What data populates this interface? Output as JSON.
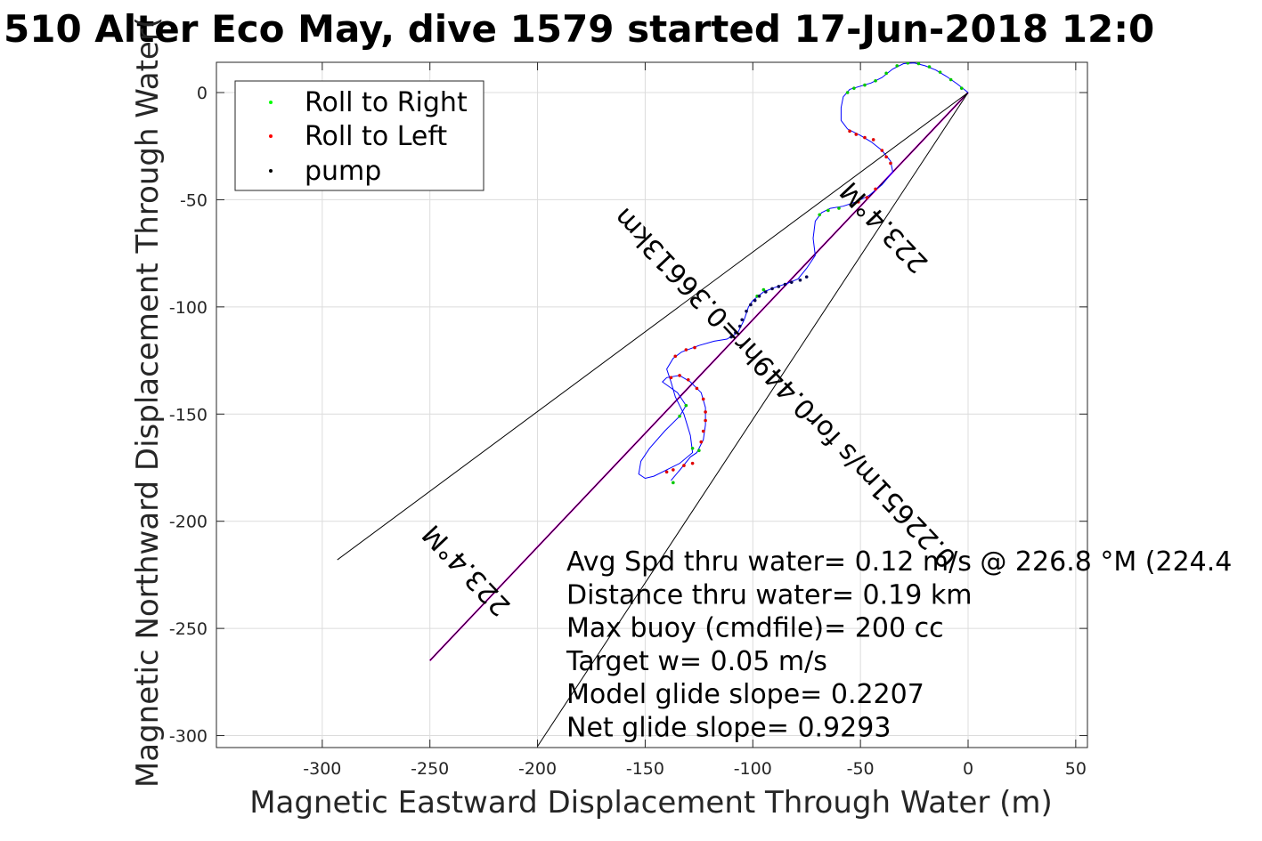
{
  "chart_data": {
    "type": "scatter",
    "title": "510 Alter Eco May, dive 1579 started 17-Jun-2018 12:0",
    "xlabel": "Magnetic Eastward Displacement Through Water (m)",
    "ylabel": "Magnetic Northward Displacement Through Water(",
    "xlim": [
      -350,
      55
    ],
    "ylim": [
      -305,
      14
    ],
    "xticks": [
      -300,
      -250,
      -200,
      -150,
      -100,
      -50,
      0,
      50
    ],
    "yticks": [
      0,
      -50,
      -100,
      -150,
      -200,
      -250,
      -300
    ],
    "grid": true,
    "legend": {
      "placement": "top-left",
      "entries": [
        {
          "label": "Roll to Right",
          "color": "#00ff00"
        },
        {
          "label": "Roll to Left",
          "color": "#ff0000"
        },
        {
          "label": "pump",
          "color": "#000000"
        }
      ]
    },
    "track": {
      "color": "#0000ff",
      "points": [
        [
          0,
          0
        ],
        [
          -5,
          4
        ],
        [
          -10,
          7.5
        ],
        [
          -15,
          10.5
        ],
        [
          -20,
          12.5
        ],
        [
          -25,
          13.8
        ],
        [
          -30,
          13.5
        ],
        [
          -35,
          11
        ],
        [
          -40,
          7
        ],
        [
          -45,
          4.5
        ],
        [
          -50,
          3
        ],
        [
          -55,
          1.5
        ],
        [
          -58,
          -2
        ],
        [
          -59,
          -7
        ],
        [
          -59,
          -13
        ],
        [
          -56,
          -17
        ],
        [
          -50,
          -20
        ],
        [
          -45,
          -23
        ],
        [
          -40,
          -27
        ],
        [
          -36,
          -32
        ],
        [
          -35,
          -37
        ],
        [
          -40,
          -43
        ],
        [
          -46,
          -48
        ],
        [
          -52,
          -51
        ],
        [
          -58,
          -53
        ],
        [
          -64,
          -54
        ],
        [
          -68,
          -56
        ],
        [
          -71,
          -60
        ],
        [
          -72,
          -68
        ],
        [
          -71,
          -76
        ],
        [
          -75,
          -82
        ],
        [
          -79,
          -87
        ],
        [
          -84,
          -89
        ],
        [
          -90,
          -91
        ],
        [
          -95,
          -93
        ],
        [
          -100,
          -97
        ],
        [
          -102,
          -100
        ],
        [
          -104,
          -106
        ],
        [
          -107,
          -112
        ],
        [
          -112,
          -115
        ],
        [
          -118,
          -116
        ],
        [
          -125,
          -118
        ],
        [
          -133,
          -121
        ],
        [
          -137,
          -124
        ],
        [
          -140,
          -129
        ],
        [
          -138,
          -135
        ],
        [
          -136,
          -142
        ],
        [
          -132,
          -150
        ],
        [
          -129,
          -160
        ],
        [
          -128,
          -168
        ],
        [
          -134,
          -173
        ],
        [
          -140,
          -176
        ],
        [
          -146,
          -179
        ],
        [
          -150,
          -180
        ],
        [
          -153,
          -178
        ],
        [
          -152,
          -172
        ],
        [
          -148,
          -166
        ],
        [
          -141,
          -158
        ],
        [
          -134,
          -151
        ],
        [
          -131,
          -146
        ],
        [
          -135,
          -140
        ],
        [
          -142,
          -135
        ],
        [
          -140,
          -133
        ],
        [
          -134,
          -132
        ],
        [
          -129,
          -135
        ],
        [
          -124,
          -140
        ],
        [
          -122,
          -147
        ],
        [
          -122,
          -155
        ],
        [
          -123,
          -162
        ],
        [
          -126,
          -168
        ],
        [
          -129,
          -170
        ],
        [
          -133,
          -175
        ],
        [
          -138,
          -181
        ]
      ]
    },
    "samples": {
      "roll_right": [
        [
          -3,
          2
        ],
        [
          -8,
          6
        ],
        [
          -13,
          9.5
        ],
        [
          -18,
          12
        ],
        [
          -23,
          13.5
        ],
        [
          -28,
          13.8
        ],
        [
          -33,
          12.5
        ],
        [
          -38,
          9
        ],
        [
          -43,
          5.5
        ],
        [
          -48,
          3.5
        ],
        [
          -53,
          2
        ],
        [
          -56,
          0
        ],
        [
          -60,
          -54
        ],
        [
          -65,
          -55
        ],
        [
          -69,
          -57
        ],
        [
          -134,
          -151
        ],
        [
          -131,
          -146
        ],
        [
          -137,
          -182
        ],
        [
          -128,
          -166
        ],
        [
          -125,
          -167
        ],
        [
          -95,
          -92
        ],
        [
          -98,
          -95
        ]
      ],
      "roll_left": [
        [
          -40,
          -27
        ],
        [
          -38,
          -30
        ],
        [
          -36,
          -33
        ],
        [
          -44,
          -22
        ],
        [
          -48,
          -21
        ],
        [
          -52,
          -19.5
        ],
        [
          -55,
          -18
        ],
        [
          -43,
          -45
        ],
        [
          -47,
          -49
        ],
        [
          -51,
          -51
        ],
        [
          -134,
          -132
        ],
        [
          -138,
          -133
        ],
        [
          -130,
          -134
        ],
        [
          -126,
          -138
        ],
        [
          -123,
          -143
        ],
        [
          -122,
          -149
        ],
        [
          -122,
          -153
        ],
        [
          -123,
          -158
        ],
        [
          -124,
          -163
        ],
        [
          -128,
          -173
        ],
        [
          -132,
          -174
        ],
        [
          -137,
          -176
        ],
        [
          -140,
          -177
        ],
        [
          -136,
          -123
        ],
        [
          -131,
          -120
        ],
        [
          -127,
          -119
        ]
      ],
      "pump": [
        [
          -75,
          -86
        ],
        [
          -78,
          -87.5
        ],
        [
          -82,
          -88.5
        ],
        [
          -85,
          -89.5
        ],
        [
          -88,
          -90.5
        ],
        [
          -91,
          -91.5
        ],
        [
          -94,
          -93
        ],
        [
          -97,
          -95
        ],
        [
          -99,
          -97
        ],
        [
          -101,
          -99
        ],
        [
          -103,
          -102
        ],
        [
          -105,
          -106
        ],
        [
          -106,
          -109
        ],
        [
          -108,
          -112
        ],
        [
          -110,
          -114
        ]
      ]
    },
    "lines": [
      {
        "name": "heading-line",
        "color": "#ff00ff",
        "from": [
          0,
          0
        ],
        "to": [
          -250,
          -265
        ]
      },
      {
        "name": "heading-line-black",
        "color": "#000000",
        "from": [
          0,
          0
        ],
        "to": [
          -250,
          -265
        ]
      },
      {
        "name": "upper-bound-line",
        "color": "#000000",
        "from": [
          0,
          0
        ],
        "to": [
          -293,
          -218
        ]
      },
      {
        "name": "lower-bound-line",
        "color": "#000000",
        "from": [
          0,
          0
        ],
        "to": [
          -200,
          -305
        ]
      }
    ],
    "rotated_labels": [
      {
        "text": "223.4°M",
        "at": [
          -36,
          -60
        ],
        "angle": 223.4
      },
      {
        "text": "0.22651m/s for0.449hr=0.36613km",
        "at": [
          -82,
          -135
        ],
        "angle": 223.4
      },
      {
        "text": "223.4°M",
        "at": [
          -230,
          -220
        ],
        "angle": 223.4
      }
    ],
    "annotations": [
      "Avg Spd thru water=  0.12 m/s @ 226.8 °M (224.4",
      "Distance thru water=  0.19 km",
      "Max buoy (cmdfile)= 200 cc",
      "Target w= 0.05 m/s",
      "Model glide slope= 0.2207",
      "Net glide slope= 0.9293"
    ]
  }
}
